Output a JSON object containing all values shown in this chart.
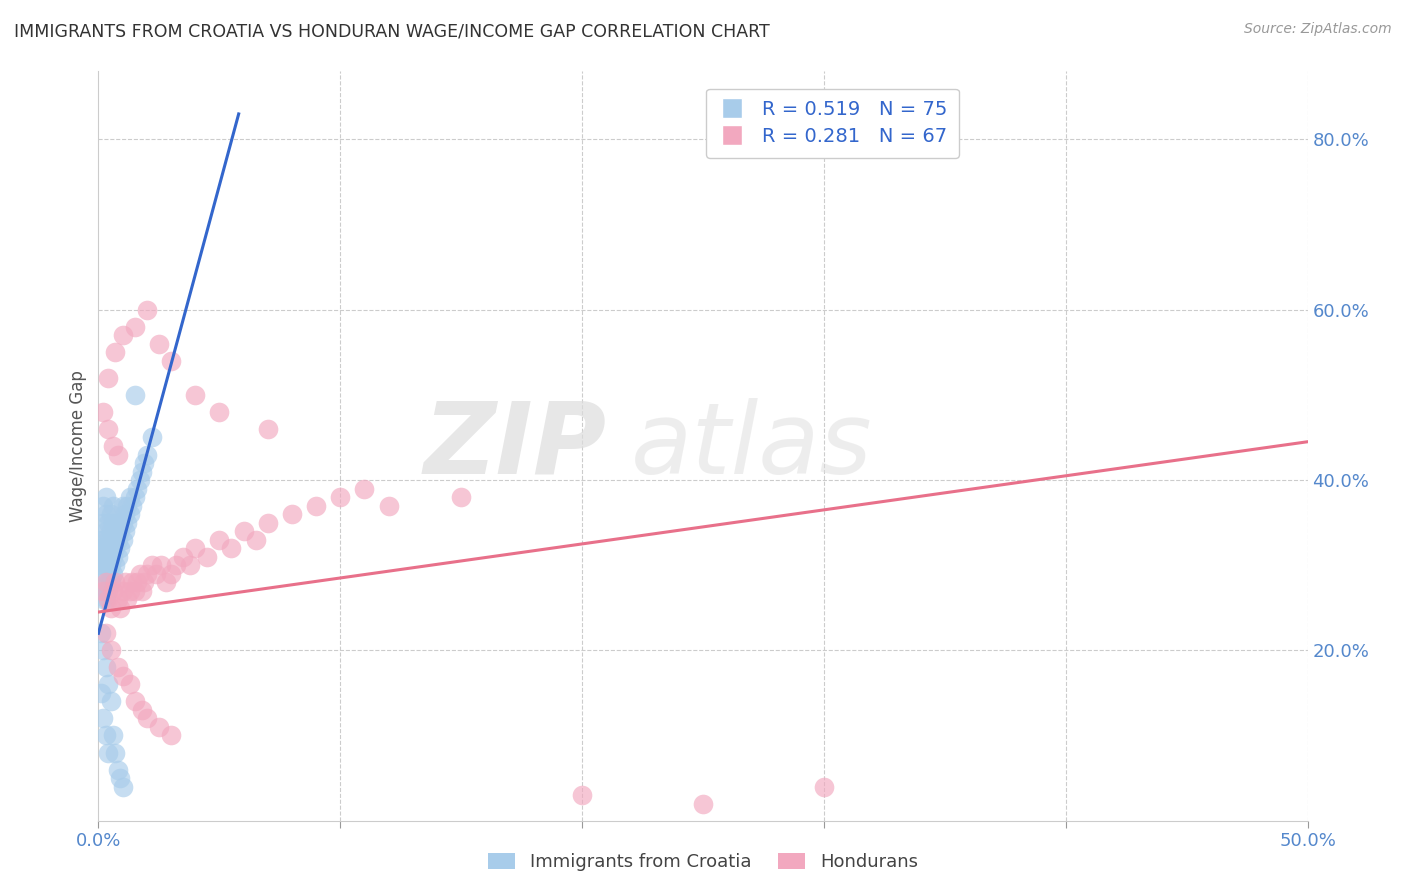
{
  "title": "IMMIGRANTS FROM CROATIA VS HONDURAN WAGE/INCOME GAP CORRELATION CHART",
  "source": "Source: ZipAtlas.com",
  "ylabel": "Wage/Income Gap",
  "x_min": 0.0,
  "x_max": 0.5,
  "y_min": 0.0,
  "y_max": 0.88,
  "x_ticks": [
    0.0,
    0.1,
    0.2,
    0.3,
    0.4,
    0.5
  ],
  "x_tick_labels": [
    "0.0%",
    "",
    "",
    "",
    "",
    "50.0%"
  ],
  "y_ticks_right": [
    0.2,
    0.4,
    0.6,
    0.8
  ],
  "y_tick_labels_right": [
    "20.0%",
    "40.0%",
    "60.0%",
    "80.0%"
  ],
  "blue_R": 0.519,
  "blue_N": 75,
  "pink_R": 0.281,
  "pink_N": 67,
  "blue_color": "#A8CCEA",
  "pink_color": "#F2A8BF",
  "blue_line_color": "#3366CC",
  "pink_line_color": "#E8708A",
  "watermark_zip": "ZIP",
  "watermark_atlas": "atlas",
  "legend_blue_label": "Immigrants from Croatia",
  "legend_pink_label": "Hondurans",
  "blue_scatter_x": [
    0.001,
    0.001,
    0.001,
    0.001,
    0.002,
    0.002,
    0.002,
    0.002,
    0.002,
    0.002,
    0.002,
    0.003,
    0.003,
    0.003,
    0.003,
    0.003,
    0.003,
    0.003,
    0.003,
    0.004,
    0.004,
    0.004,
    0.004,
    0.004,
    0.004,
    0.005,
    0.005,
    0.005,
    0.005,
    0.005,
    0.006,
    0.006,
    0.006,
    0.006,
    0.006,
    0.007,
    0.007,
    0.007,
    0.008,
    0.008,
    0.008,
    0.009,
    0.009,
    0.01,
    0.01,
    0.01,
    0.011,
    0.011,
    0.012,
    0.012,
    0.013,
    0.013,
    0.014,
    0.015,
    0.016,
    0.017,
    0.018,
    0.019,
    0.02,
    0.022,
    0.001,
    0.001,
    0.002,
    0.002,
    0.003,
    0.003,
    0.004,
    0.004,
    0.005,
    0.006,
    0.007,
    0.008,
    0.009,
    0.01,
    0.015
  ],
  "blue_scatter_y": [
    0.3,
    0.31,
    0.32,
    0.33,
    0.26,
    0.28,
    0.3,
    0.31,
    0.33,
    0.35,
    0.37,
    0.26,
    0.27,
    0.29,
    0.3,
    0.32,
    0.34,
    0.36,
    0.38,
    0.27,
    0.28,
    0.3,
    0.31,
    0.33,
    0.35,
    0.28,
    0.3,
    0.32,
    0.34,
    0.36,
    0.29,
    0.31,
    0.33,
    0.35,
    0.37,
    0.3,
    0.32,
    0.34,
    0.31,
    0.33,
    0.35,
    0.32,
    0.34,
    0.33,
    0.35,
    0.37,
    0.34,
    0.36,
    0.35,
    0.37,
    0.36,
    0.38,
    0.37,
    0.38,
    0.39,
    0.4,
    0.41,
    0.42,
    0.43,
    0.45,
    0.22,
    0.15,
    0.2,
    0.12,
    0.18,
    0.1,
    0.16,
    0.08,
    0.14,
    0.1,
    0.08,
    0.06,
    0.05,
    0.04,
    0.5
  ],
  "pink_scatter_x": [
    0.002,
    0.003,
    0.004,
    0.005,
    0.006,
    0.007,
    0.008,
    0.009,
    0.01,
    0.011,
    0.012,
    0.013,
    0.014,
    0.015,
    0.016,
    0.017,
    0.018,
    0.019,
    0.02,
    0.022,
    0.024,
    0.026,
    0.028,
    0.03,
    0.032,
    0.035,
    0.038,
    0.04,
    0.045,
    0.05,
    0.055,
    0.06,
    0.065,
    0.07,
    0.08,
    0.09,
    0.1,
    0.11,
    0.12,
    0.15,
    0.003,
    0.005,
    0.008,
    0.01,
    0.013,
    0.015,
    0.018,
    0.02,
    0.025,
    0.03,
    0.004,
    0.007,
    0.01,
    0.015,
    0.02,
    0.025,
    0.03,
    0.04,
    0.05,
    0.07,
    0.002,
    0.004,
    0.006,
    0.008,
    0.2,
    0.25,
    0.3
  ],
  "pink_scatter_y": [
    0.27,
    0.28,
    0.26,
    0.25,
    0.27,
    0.28,
    0.26,
    0.25,
    0.27,
    0.28,
    0.26,
    0.27,
    0.28,
    0.27,
    0.28,
    0.29,
    0.27,
    0.28,
    0.29,
    0.3,
    0.29,
    0.3,
    0.28,
    0.29,
    0.3,
    0.31,
    0.3,
    0.32,
    0.31,
    0.33,
    0.32,
    0.34,
    0.33,
    0.35,
    0.36,
    0.37,
    0.38,
    0.39,
    0.37,
    0.38,
    0.22,
    0.2,
    0.18,
    0.17,
    0.16,
    0.14,
    0.13,
    0.12,
    0.11,
    0.1,
    0.52,
    0.55,
    0.57,
    0.58,
    0.6,
    0.56,
    0.54,
    0.5,
    0.48,
    0.46,
    0.48,
    0.46,
    0.44,
    0.43,
    0.03,
    0.02,
    0.04
  ],
  "blue_line_x": [
    0.0,
    0.058
  ],
  "blue_line_y": [
    0.22,
    0.83
  ],
  "pink_line_x": [
    0.0,
    0.5
  ],
  "pink_line_y": [
    0.245,
    0.445
  ]
}
